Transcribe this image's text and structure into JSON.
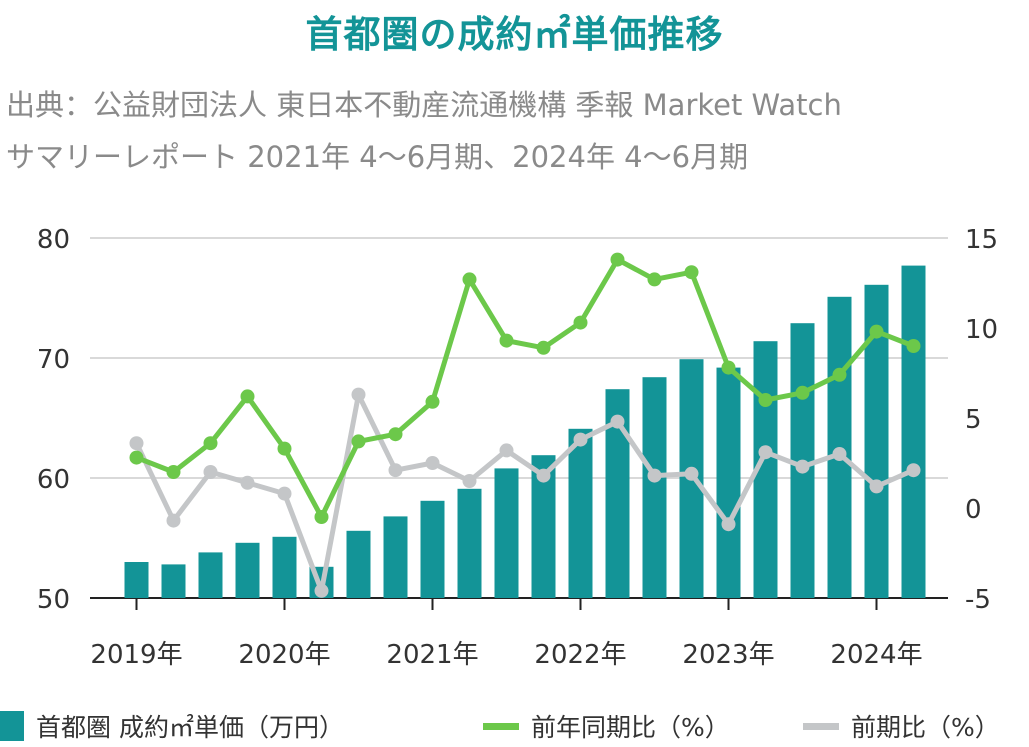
{
  "title": "首都圏の成約㎡単価推移",
  "subtitle_line1": "出典：公益財団法人 東日本不動産流通機構 季報 Market Watch",
  "subtitle_line2": "サマリーレポート 2021年 4〜6月期、2024年 4〜6月期",
  "colors": {
    "bar": "#139497",
    "yoy_line": "#6cc84a",
    "qoq_line": "#c4c6c8",
    "grid": "#d9d9d9",
    "axis_text": "#333333"
  },
  "chart_data": {
    "type": "bar",
    "x_tick_labels": [
      "2019年",
      "2020年",
      "2021年",
      "2022年",
      "2023年",
      "2024年"
    ],
    "y_left": {
      "ticks": [
        "80",
        "70",
        "60",
        "50"
      ],
      "range": [
        50,
        80
      ]
    },
    "y_right": {
      "ticks": [
        "15",
        "10",
        "5",
        "0",
        "-5"
      ],
      "range": [
        -5,
        15
      ]
    },
    "grid": true,
    "legend_position": "bottom",
    "series": [
      {
        "name": "首都圏 成約㎡単価（万円）",
        "kind": "bar",
        "axis": "left",
        "values": [
          53.0,
          52.8,
          53.8,
          54.6,
          55.1,
          52.6,
          55.6,
          56.8,
          58.1,
          59.1,
          60.8,
          61.9,
          64.1,
          67.4,
          68.4,
          69.9,
          69.2,
          71.4,
          72.9,
          75.1,
          76.1,
          77.7
        ]
      },
      {
        "name": "前年同期比（%）",
        "kind": "line",
        "axis": "right",
        "values": [
          2.8,
          2.0,
          3.6,
          6.2,
          3.3,
          -0.5,
          3.7,
          4.1,
          5.9,
          12.7,
          9.3,
          8.9,
          10.3,
          13.8,
          12.7,
          13.1,
          7.8,
          6.0,
          6.4,
          7.4,
          9.8,
          9.0
        ]
      },
      {
        "name": "前期比（%）",
        "kind": "line",
        "axis": "right",
        "values": [
          3.6,
          -0.7,
          2.0,
          1.4,
          0.8,
          -4.6,
          6.3,
          2.1,
          2.5,
          1.5,
          3.2,
          1.8,
          3.8,
          4.8,
          1.8,
          1.9,
          -0.9,
          3.1,
          2.3,
          3.0,
          1.2,
          2.1
        ]
      }
    ]
  }
}
